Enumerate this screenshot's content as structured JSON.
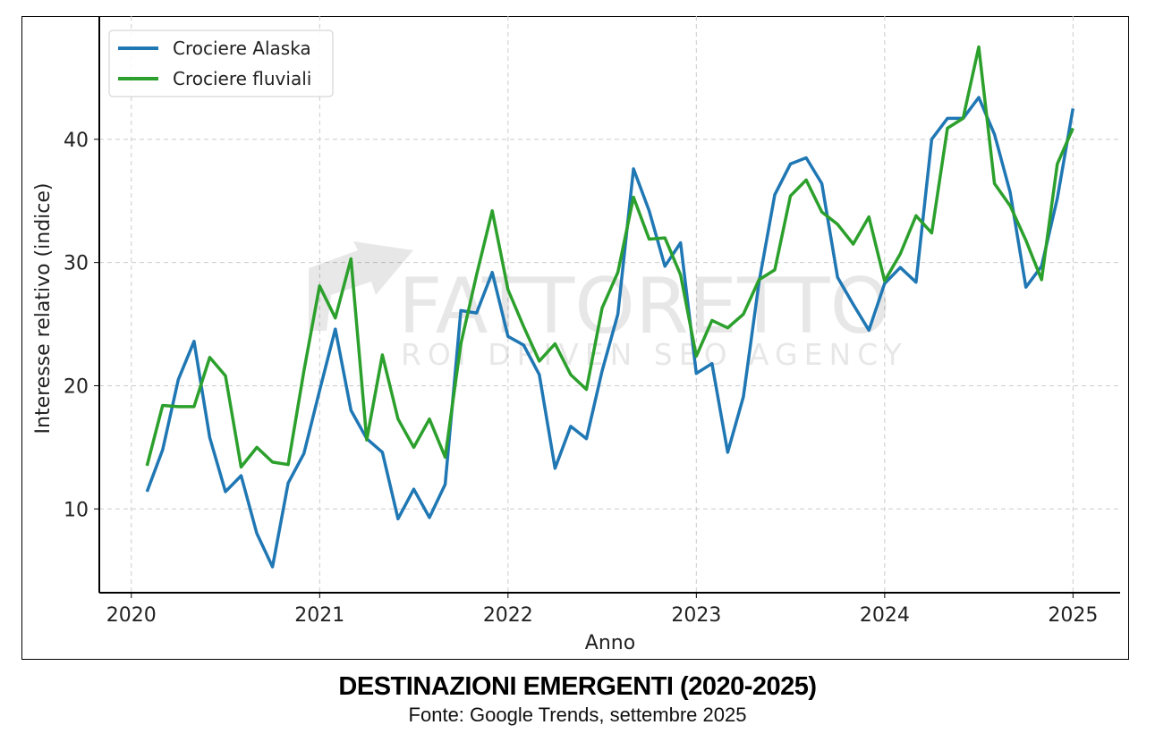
{
  "chart_data": {
    "type": "line",
    "title": "DESTINAZIONI EMERGENTI (2020-2025)",
    "subtitle": "Fonte: Google Trends, settembre 2025",
    "xlabel": "Anno",
    "ylabel": "Interesse relativo (indice)",
    "xlim": [
      2019.83,
      2025.25
    ],
    "ylim": [
      3.2,
      50
    ],
    "xticks": [
      2020,
      2021,
      2022,
      2023,
      2024,
      2025
    ],
    "xtick_labels": [
      "2020",
      "2021",
      "2022",
      "2023",
      "2024",
      "2025"
    ],
    "yticks": [
      10,
      20,
      30,
      40
    ],
    "ytick_labels": [
      "10",
      "20",
      "30",
      "40"
    ],
    "grid": true,
    "legend_position": "top-left",
    "x_start": 2020.083,
    "x_step_months": 1,
    "series": [
      {
        "name": "Crociere Alaska",
        "color": "#1f77b4",
        "values": [
          11.4,
          14.8,
          20.5,
          23.6,
          15.8,
          11.4,
          12.7,
          8.0,
          5.3,
          12.1,
          14.5,
          19.6,
          24.6,
          18.0,
          15.7,
          14.6,
          9.2,
          11.6,
          9.3,
          12.0,
          26.1,
          25.9,
          29.2,
          24.0,
          23.3,
          20.9,
          13.3,
          16.7,
          15.7,
          21.2,
          25.8,
          37.6,
          34.2,
          29.7,
          31.6,
          21.0,
          21.8,
          14.6,
          19.1,
          28.4,
          35.5,
          38.0,
          38.5,
          36.4,
          28.8,
          26.6,
          24.5,
          28.3,
          29.6,
          28.4,
          40.0,
          41.7,
          41.7,
          43.4,
          40.4,
          35.7,
          28.0,
          29.7,
          35.2,
          42.5
        ]
      },
      {
        "name": "Crociere fluviali",
        "color": "#2ca02c",
        "values": [
          13.5,
          18.4,
          18.3,
          18.3,
          22.3,
          20.8,
          13.4,
          15.0,
          13.8,
          13.6,
          21.2,
          28.1,
          25.5,
          30.3,
          15.6,
          22.5,
          17.3,
          15.0,
          17.3,
          14.2,
          23.4,
          29.0,
          34.2,
          27.8,
          24.8,
          22.0,
          23.4,
          20.9,
          19.7,
          26.3,
          29.2,
          35.3,
          31.9,
          32.0,
          29.0,
          22.4,
          25.3,
          24.7,
          25.8,
          28.6,
          29.4,
          35.4,
          36.7,
          34.1,
          33.1,
          31.5,
          33.7,
          28.5,
          30.7,
          33.8,
          32.4,
          40.9,
          41.7,
          47.5,
          36.4,
          34.6,
          31.8,
          28.6,
          38.0,
          40.9
        ]
      }
    ],
    "watermark": {
      "line1": "FATTORETTO",
      "line2": "ROI DRIVEN SEO AGENCY"
    }
  }
}
